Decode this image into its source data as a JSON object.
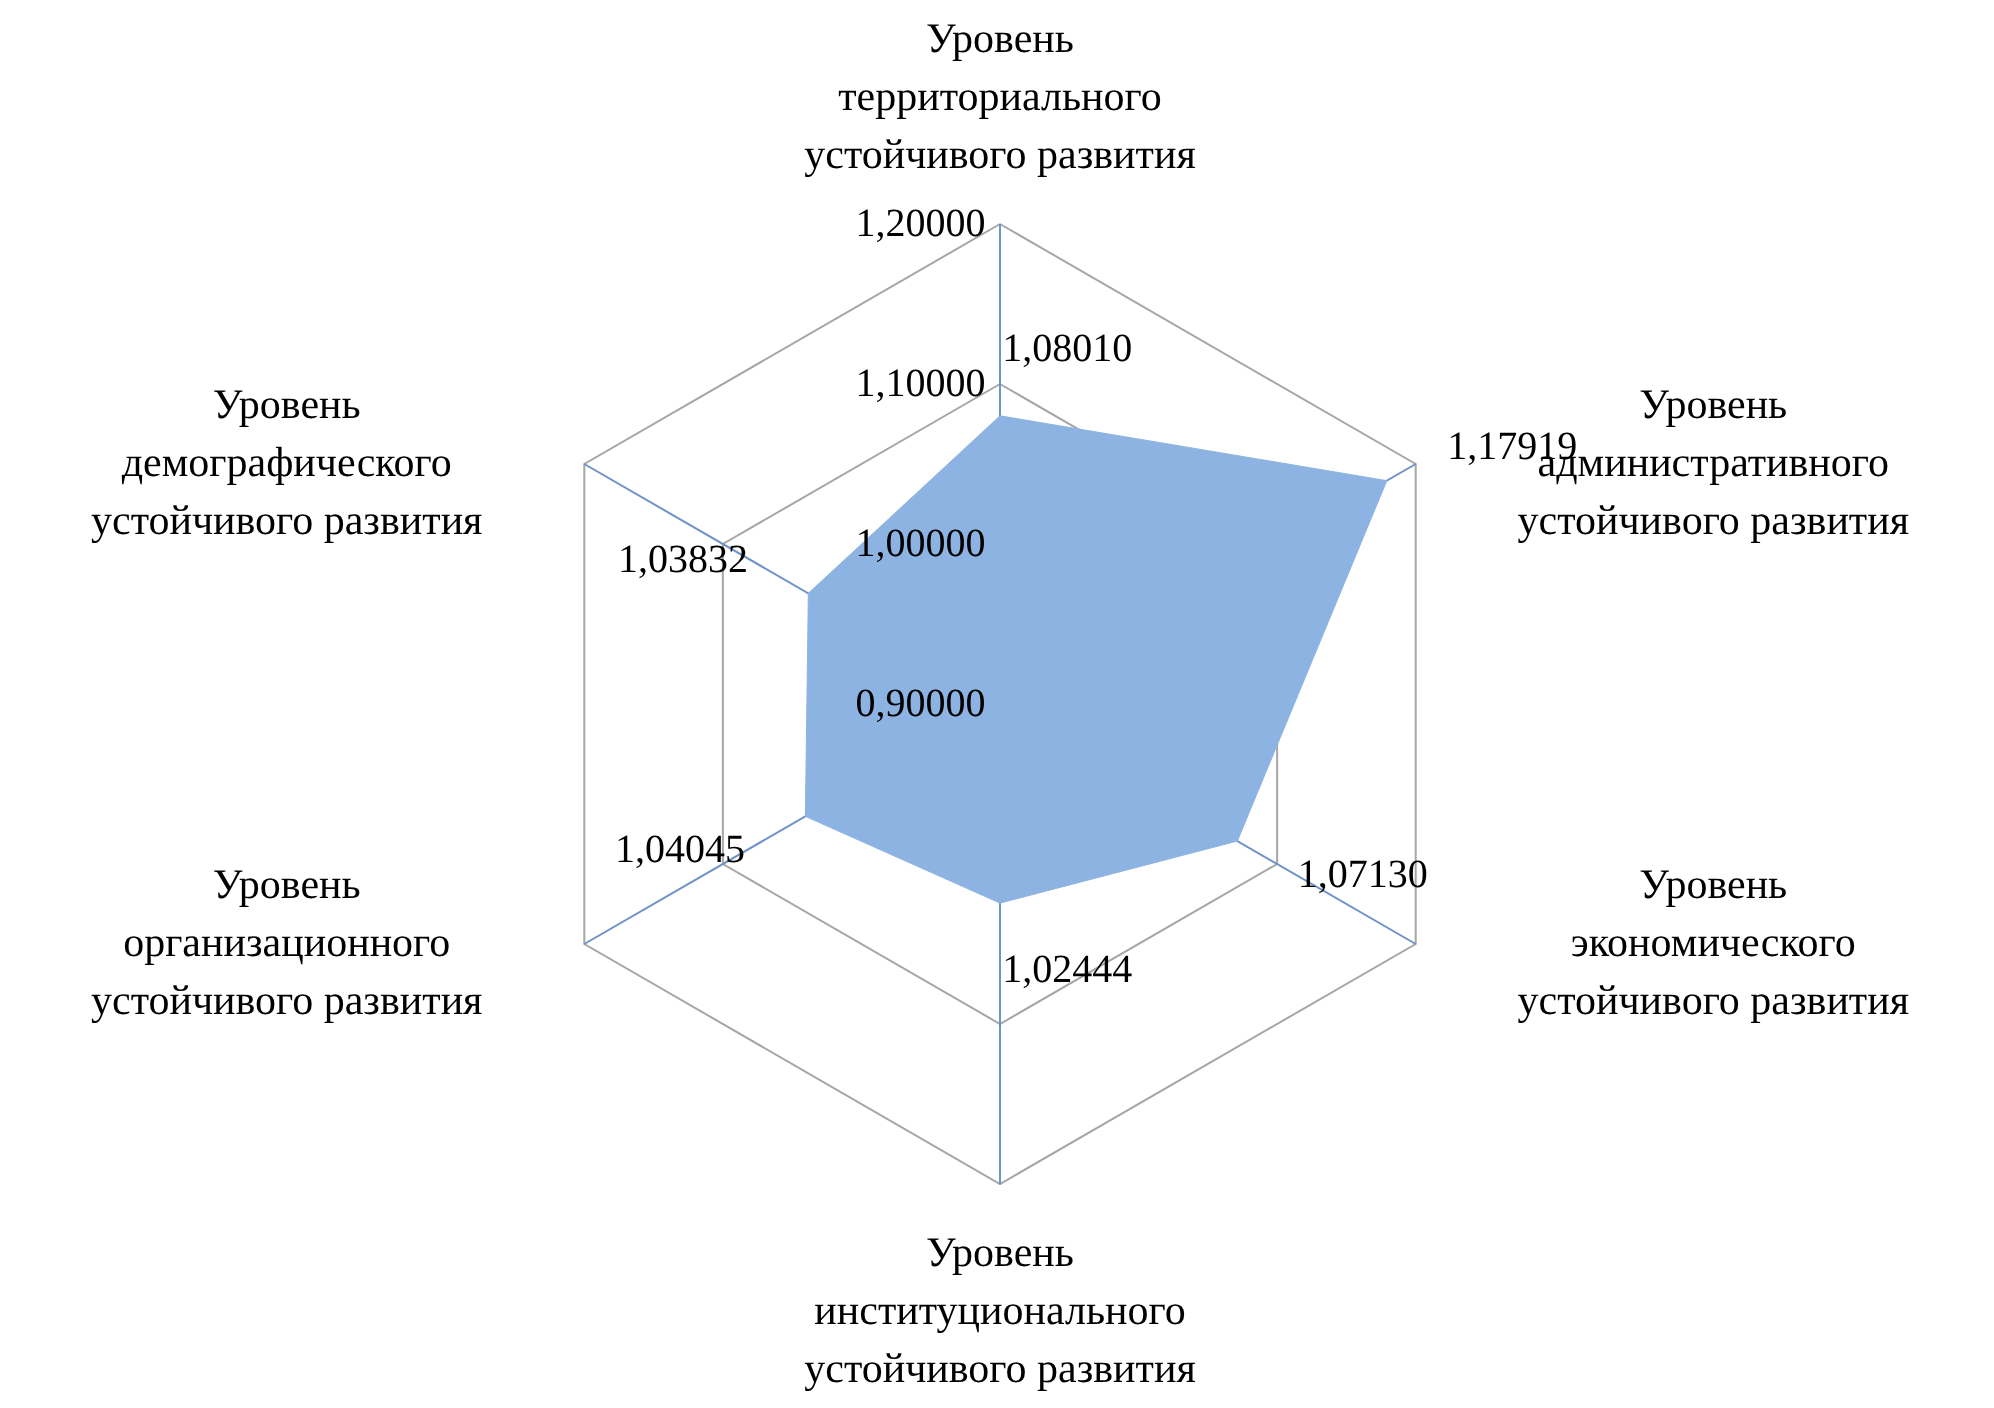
{
  "chart_data": {
    "type": "radar",
    "categories": [
      "Уровень\nтерриториального\nустойчивого развития",
      "Уровень\nадминистративного\nустойчивого развития",
      "Уровень\nэкономического\nустойчивого развития",
      "Уровень\nинституционального\nустойчивого развития",
      "Уровень\nорганизационного\nустойчивого развития",
      "Уровень\nдемографического\nустойчивого развития"
    ],
    "series": [
      {
        "color": "#8db3e2",
        "values": [
          1.0801,
          1.17919,
          1.0713,
          1.02444,
          1.04045,
          1.03832
        ],
        "value_labels": [
          "1,08010",
          "1,17919",
          "1,07130",
          "1,02444",
          "1,04045",
          "1,03832"
        ]
      }
    ],
    "ylim": [
      0.9,
      1.2
    ],
    "yticks": [
      {
        "value": 0.9,
        "label": "0,90000"
      },
      {
        "value": 1.0,
        "label": "1,00000"
      },
      {
        "value": 1.1,
        "label": "1,10000"
      },
      {
        "value": 1.2,
        "label": "1,20000"
      }
    ],
    "grid": true
  }
}
